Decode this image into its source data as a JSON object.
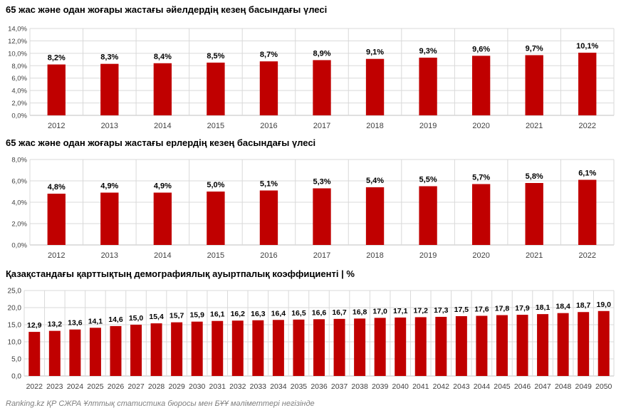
{
  "colors": {
    "bar": "#c00000",
    "grid": "#d9d9d9",
    "axis": "#bfbfbf",
    "text": "#404040"
  },
  "chart_data": [
    {
      "type": "bar",
      "title": "65 жас және одан жоғары жастағы әйелдердің кезең басындағы үлесі",
      "categories": [
        "2012",
        "2013",
        "2014",
        "2015",
        "2016",
        "2017",
        "2018",
        "2019",
        "2020",
        "2021",
        "2022"
      ],
      "values": [
        8.2,
        8.3,
        8.4,
        8.5,
        8.7,
        8.9,
        9.1,
        9.3,
        9.6,
        9.7,
        10.1
      ],
      "data_labels": [
        "8,2%",
        "8,3%",
        "8,4%",
        "8,5%",
        "8,7%",
        "8,9%",
        "9,1%",
        "9,3%",
        "9,6%",
        "9,7%",
        "10,1%"
      ],
      "ylim": [
        0,
        14
      ],
      "yticks": [
        0,
        2,
        4,
        6,
        8,
        10,
        12,
        14
      ],
      "ytick_labels": [
        "0,0%",
        "2,0%",
        "4,0%",
        "6,0%",
        "8,0%",
        "10,0%",
        "12,0%",
        "14,0%"
      ],
      "grid": true
    },
    {
      "type": "bar",
      "title": "65 жас және одан жоғары жастағы ерлердің кезең басындағы үлесі",
      "categories": [
        "2012",
        "2013",
        "2014",
        "2015",
        "2016",
        "2017",
        "2018",
        "2019",
        "2020",
        "2021",
        "2022"
      ],
      "values": [
        4.8,
        4.9,
        4.9,
        5.0,
        5.1,
        5.3,
        5.4,
        5.5,
        5.7,
        5.8,
        6.1
      ],
      "data_labels": [
        "4,8%",
        "4,9%",
        "4,9%",
        "5,0%",
        "5,1%",
        "5,3%",
        "5,4%",
        "5,5%",
        "5,7%",
        "5,8%",
        "6,1%"
      ],
      "ylim": [
        0,
        8
      ],
      "yticks": [
        0,
        2,
        4,
        6,
        8
      ],
      "ytick_labels": [
        "0,0%",
        "2,0%",
        "4,0%",
        "6,0%",
        "8,0%"
      ],
      "grid": true
    },
    {
      "type": "bar",
      "title": "Қазақстандағы қарттықтың демографиялық ауыртпалық коэффициенті | %",
      "categories": [
        "2022",
        "2023",
        "2024",
        "2025",
        "2026",
        "2027",
        "2028",
        "2029",
        "2030",
        "2031",
        "2032",
        "2033",
        "2034",
        "2035",
        "2036",
        "2037",
        "2038",
        "2039",
        "2040",
        "2041",
        "2042",
        "2043",
        "2044",
        "2045",
        "2046",
        "2047",
        "2048",
        "2049",
        "2050"
      ],
      "values": [
        12.9,
        13.2,
        13.6,
        14.1,
        14.6,
        15.0,
        15.4,
        15.7,
        15.9,
        16.1,
        16.2,
        16.3,
        16.4,
        16.5,
        16.6,
        16.7,
        16.8,
        17.0,
        17.1,
        17.2,
        17.3,
        17.5,
        17.6,
        17.8,
        17.9,
        18.1,
        18.4,
        18.7,
        19.0
      ],
      "data_labels": [
        "12,9",
        "13,2",
        "13,6",
        "14,1",
        "14,6",
        "15,0",
        "15,4",
        "15,7",
        "15,9",
        "16,1",
        "16,2",
        "16,3",
        "16,4",
        "16,5",
        "16,6",
        "16,7",
        "16,8",
        "17,0",
        "17,1",
        "17,2",
        "17,3",
        "17,5",
        "17,6",
        "17,8",
        "17,9",
        "18,1",
        "18,4",
        "18,7",
        "19,0"
      ],
      "ylim": [
        0,
        25
      ],
      "yticks": [
        0,
        5,
        10,
        15,
        20,
        25
      ],
      "ytick_labels": [
        "0,0",
        "5,0",
        "10,0",
        "15,0",
        "20,0",
        "25,0"
      ],
      "grid": true
    }
  ],
  "source": "Ranking.kz ҚР СЖРА Ұлттық статистика бюросы мен БҰҰ мәліметтері негізінде"
}
